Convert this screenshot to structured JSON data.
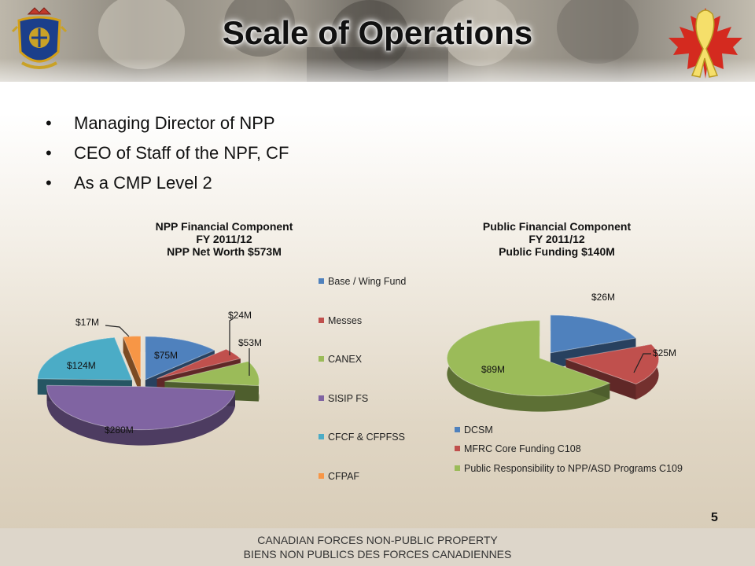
{
  "slide": {
    "title": "Scale of Operations",
    "bullets": [
      "Managing Director of NPP",
      "CEO of Staff of the NPF, CF",
      "As a CMP Level 2"
    ],
    "page_number": "5",
    "footer": {
      "line1": "CANADIAN FORCES NON-PUBLIC PROPERTY",
      "line2": "BIENS NON PUBLICS DES FORCES CANADIENNES"
    }
  },
  "colors": {
    "blue": "#4f81bd",
    "red": "#c0504d",
    "green": "#9bbb59",
    "purple": "#8064a2",
    "teal": "#4bacc6",
    "orange": "#f79646"
  },
  "chart_data": [
    {
      "type": "pie",
      "title_lines": [
        "NPP Financial Component",
        "FY 2011/12",
        "NPP Net Worth $573M"
      ],
      "categories": [
        "Base / Wing Fund",
        "Messes",
        "CANEX",
        "SISIP FS",
        "CFCF & CFPFSS",
        "CFPAF"
      ],
      "values": [
        75,
        24,
        53,
        280,
        124,
        17
      ],
      "data_labels": [
        "$75M",
        "$24M",
        "$53M",
        "$280M",
        "$124M",
        "$17M"
      ],
      "colors": [
        "#4f81bd",
        "#c0504d",
        "#9bbb59",
        "#8064a2",
        "#4bacc6",
        "#f79646"
      ],
      "exploded": true,
      "legend": "right"
    },
    {
      "type": "pie",
      "title_lines": [
        "Public Financial Component",
        "FY 2011/12",
        "Public Funding $140M"
      ],
      "categories": [
        "DCSM",
        "MFRC Core Funding C108",
        "Public Responsibility to NPP/ASD Programs C109"
      ],
      "values": [
        26,
        25,
        89
      ],
      "data_labels": [
        "$26M",
        "$25M",
        "$89M"
      ],
      "colors": [
        "#4f81bd",
        "#c0504d",
        "#9bbb59"
      ],
      "exploded": true,
      "legend": "bottom"
    }
  ]
}
